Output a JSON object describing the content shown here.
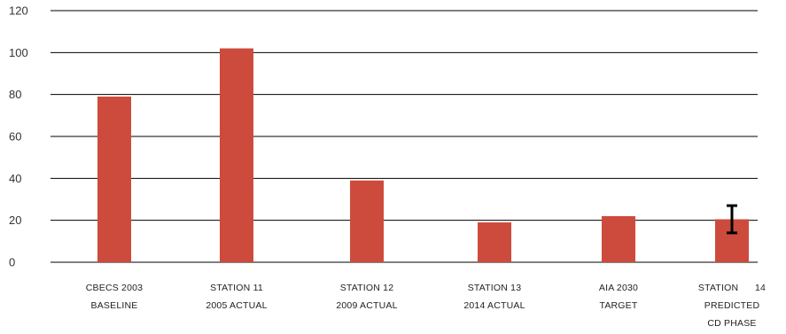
{
  "chart_data": {
    "type": "bar",
    "categories": [
      [
        "CBECS 2003",
        "BASELINE"
      ],
      [
        "STATION 11",
        "2005 ACTUAL"
      ],
      [
        "STATION 12",
        "2009 ACTUAL"
      ],
      [
        "STATION 13",
        "2014 ACTUAL"
      ],
      [
        "AIA 2030",
        "TARGET"
      ],
      [
        "STATION      14",
        "PREDICTED",
        "CD PHASE"
      ]
    ],
    "values": [
      79,
      102,
      39,
      19,
      22,
      20.5
    ],
    "error_bars": [
      null,
      null,
      null,
      null,
      null,
      {
        "low": 14,
        "high": 27
      }
    ],
    "ylim": [
      0,
      120
    ],
    "yticks": [
      0,
      20,
      40,
      60,
      80,
      100,
      120
    ],
    "grid": true,
    "legend": "none",
    "title": "",
    "xlabel": "",
    "ylabel": "",
    "colors": {
      "bar": "#cd4b3c",
      "error_bar": "#000000",
      "grid": "#000000"
    }
  }
}
